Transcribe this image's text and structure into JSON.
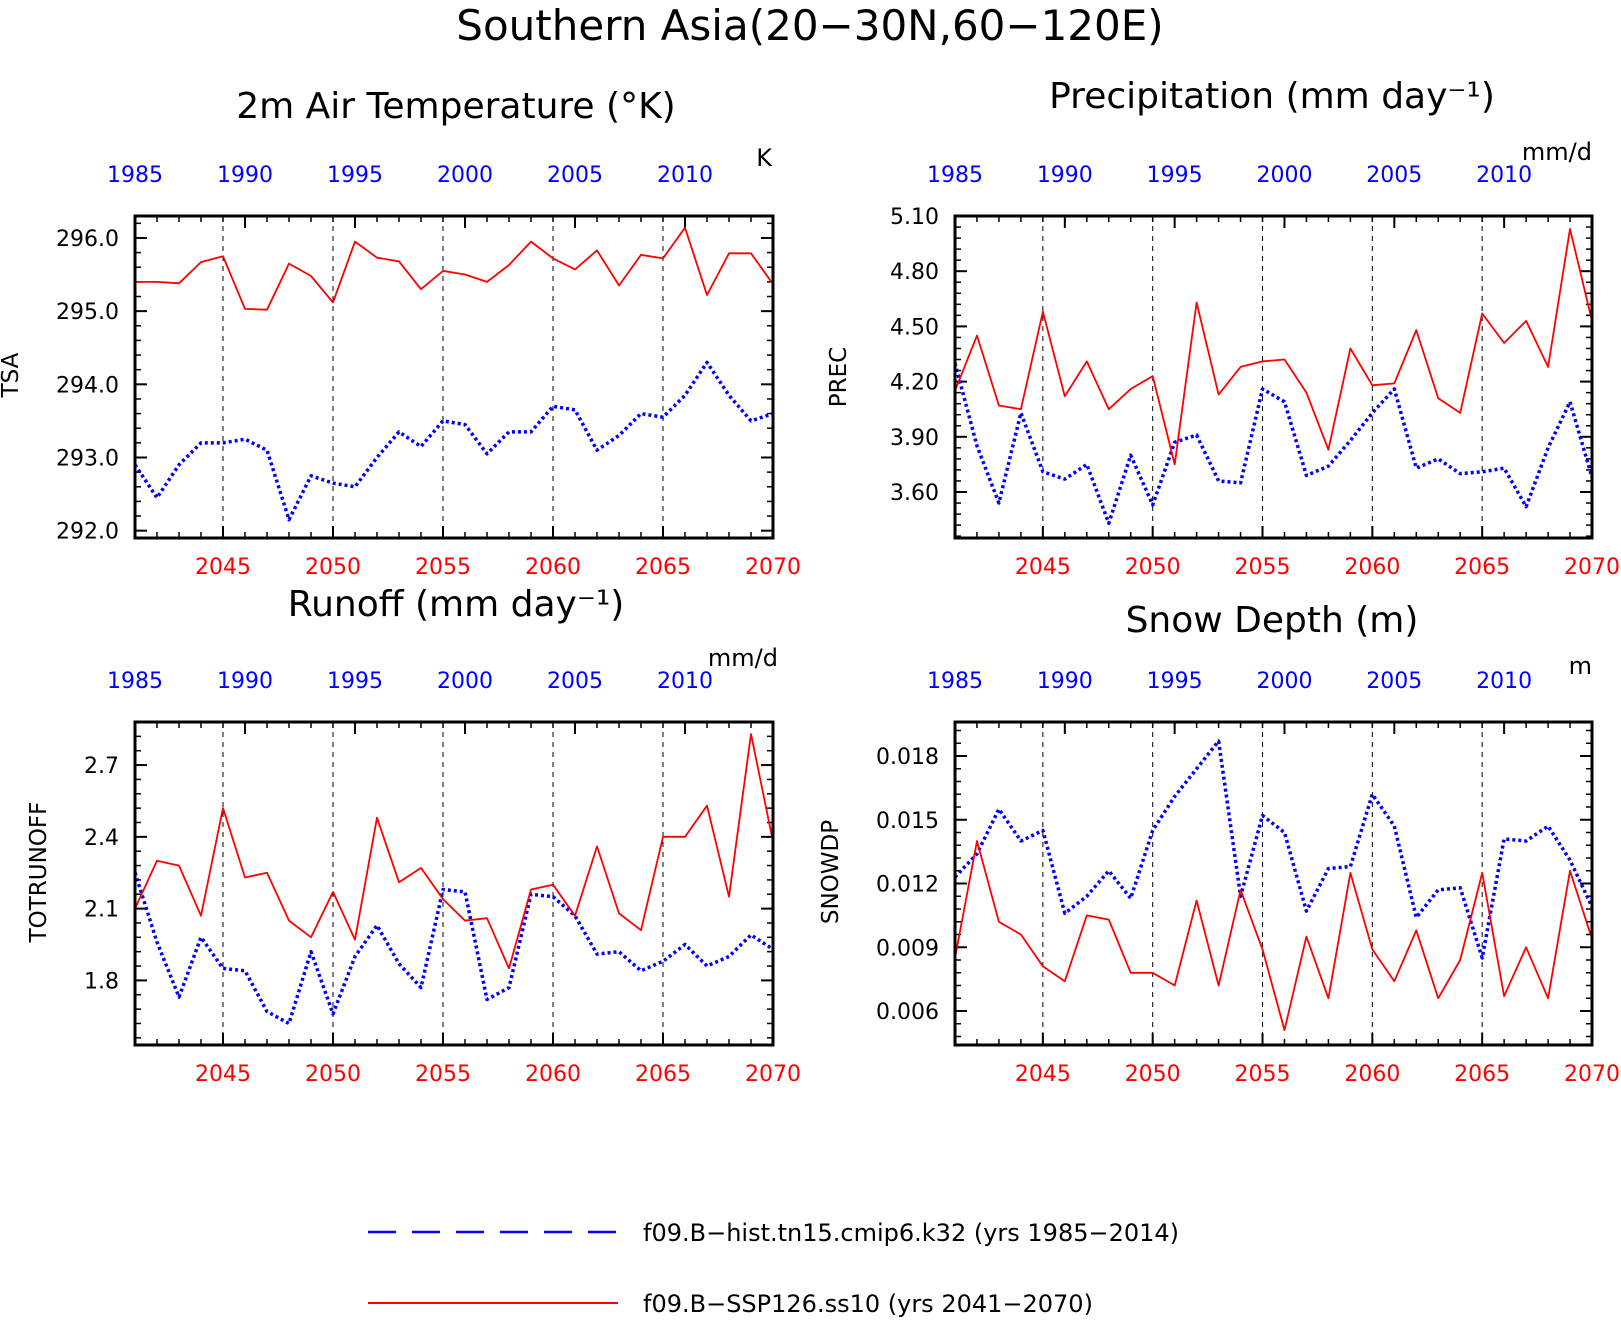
{
  "title": "Southern Asia(20−30N,60−120E)",
  "colors": {
    "hist": "#0000ff",
    "ssp": "#ff0000",
    "axis": "#000000"
  },
  "legend": {
    "hist": "f09.B−hist.tn15.cmip6.k32 (yrs 1985−2014)",
    "ssp": "f09.B−SSP126.ss10 (yrs 2041−2070)"
  },
  "chart_data": [
    {
      "type": "line",
      "panel_title": "2m Air Temperature (°K)",
      "ylabel": "TSA",
      "unit": "K",
      "ylim": [
        291.9,
        296.3
      ],
      "yticks": [
        292.0,
        293.0,
        294.0,
        295.0,
        296.0
      ],
      "ytick_labels": [
        "292.0",
        "293.0",
        "294.0",
        "295.0",
        "296.0"
      ],
      "x_top_ticks": [
        "1985",
        "1990",
        "1995",
        "2000",
        "2005",
        "2010"
      ],
      "x_bottom_ticks": [
        "2045",
        "2050",
        "2055",
        "2060",
        "2065",
        "2070"
      ],
      "vlines": [
        2045,
        2050,
        2055,
        2060,
        2065
      ],
      "series": [
        {
          "name": "f09.B−hist.tn15.cmip6.k32 (yrs 1985−2014)",
          "x_years": [
            1985,
            1986,
            1987,
            1988,
            1989,
            1990,
            1991,
            1992,
            1993,
            1994,
            1995,
            1996,
            1997,
            1998,
            1999,
            2000,
            2001,
            2002,
            2003,
            2004,
            2005,
            2006,
            2007,
            2008,
            2009,
            2010,
            2011,
            2012,
            2013,
            2014
          ],
          "values": [
            292.9,
            292.45,
            292.9,
            293.2,
            293.2,
            293.25,
            293.1,
            292.15,
            292.75,
            292.65,
            292.6,
            293.0,
            293.35,
            293.15,
            293.5,
            293.45,
            293.05,
            293.35,
            293.35,
            293.7,
            293.65,
            293.1,
            293.3,
            293.6,
            293.55,
            293.85,
            294.3,
            293.85,
            293.5,
            293.6
          ]
        },
        {
          "name": "f09.B−SSP126.ss10 (yrs 2041−2070)",
          "x_years": [
            2041,
            2042,
            2043,
            2044,
            2045,
            2046,
            2047,
            2048,
            2049,
            2050,
            2051,
            2052,
            2053,
            2054,
            2055,
            2056,
            2057,
            2058,
            2059,
            2060,
            2061,
            2062,
            2063,
            2064,
            2065,
            2066,
            2067,
            2068,
            2069,
            2070
          ],
          "values": [
            295.4,
            295.4,
            295.38,
            295.67,
            295.75,
            295.03,
            295.02,
            295.65,
            295.48,
            295.12,
            295.95,
            295.73,
            295.68,
            295.3,
            295.55,
            295.5,
            295.4,
            295.63,
            295.95,
            295.72,
            295.57,
            295.83,
            295.35,
            295.77,
            295.72,
            296.14,
            295.22,
            295.79,
            295.79,
            295.37
          ]
        }
      ]
    },
    {
      "type": "line",
      "panel_title": "Precipitation (mm day⁻¹)",
      "ylabel": "PREC",
      "unit": "mm/d",
      "ylim": [
        3.35,
        5.1
      ],
      "yticks": [
        3.6,
        3.9,
        4.2,
        4.5,
        4.8,
        5.1
      ],
      "ytick_labels": [
        "3.60",
        "3.90",
        "4.20",
        "4.50",
        "4.80",
        "5.10"
      ],
      "x_top_ticks": [
        "1985",
        "1990",
        "1995",
        "2000",
        "2005",
        "2010"
      ],
      "x_bottom_ticks": [
        "2045",
        "2050",
        "2055",
        "2060",
        "2065",
        "2070"
      ],
      "vlines": [
        2045,
        2050,
        2055,
        2060,
        2065
      ],
      "series": [
        {
          "name": "f09.B−hist.tn15.cmip6.k32 (yrs 1985−2014)",
          "x_years": [
            1985,
            1986,
            1987,
            1988,
            1989,
            1990,
            1991,
            1992,
            1993,
            1994,
            1995,
            1996,
            1997,
            1998,
            1999,
            2000,
            2001,
            2002,
            2003,
            2004,
            2005,
            2006,
            2007,
            2008,
            2009,
            2010,
            2011,
            2012,
            2013,
            2014
          ],
          "values": [
            4.3,
            3.85,
            3.54,
            4.03,
            3.71,
            3.67,
            3.75,
            3.43,
            3.8,
            3.53,
            3.87,
            3.91,
            3.66,
            3.65,
            4.16,
            4.09,
            3.69,
            3.74,
            3.88,
            4.03,
            4.16,
            3.73,
            3.78,
            3.7,
            3.71,
            3.73,
            3.52,
            3.84,
            4.09,
            3.68
          ]
        },
        {
          "name": "f09.B−SSP126.ss10 (yrs 2041−2070)",
          "x_years": [
            2041,
            2042,
            2043,
            2044,
            2045,
            2046,
            2047,
            2048,
            2049,
            2050,
            2051,
            2052,
            2053,
            2054,
            2055,
            2056,
            2057,
            2058,
            2059,
            2060,
            2061,
            2062,
            2063,
            2064,
            2065,
            2066,
            2067,
            2068,
            2069,
            2070
          ],
          "values": [
            4.15,
            4.45,
            4.07,
            4.05,
            4.58,
            4.12,
            4.31,
            4.05,
            4.16,
            4.23,
            3.75,
            4.63,
            4.13,
            4.28,
            4.31,
            4.32,
            4.14,
            3.83,
            4.38,
            4.18,
            4.19,
            4.48,
            4.11,
            4.03,
            4.57,
            4.41,
            4.53,
            4.28,
            5.03,
            4.53
          ]
        }
      ]
    },
    {
      "type": "line",
      "panel_title": "Runoff (mm day⁻¹)",
      "ylabel": "TOTRUNOFF",
      "unit": "mm/d",
      "ylim": [
        1.53,
        2.88
      ],
      "yticks": [
        1.8,
        2.1,
        2.4,
        2.7
      ],
      "ytick_labels": [
        "1.8",
        "2.1",
        "2.4",
        "2.7"
      ],
      "x_top_ticks": [
        "1985",
        "1990",
        "1995",
        "2000",
        "2005",
        "2010"
      ],
      "x_bottom_ticks": [
        "2045",
        "2050",
        "2055",
        "2060",
        "2065",
        "2070"
      ],
      "vlines": [
        2045,
        2050,
        2055,
        2060,
        2065
      ],
      "series": [
        {
          "name": "f09.B−hist.tn15.cmip6.k32 (yrs 1985−2014)",
          "x_years": [
            1985,
            1986,
            1987,
            1988,
            1989,
            1990,
            1991,
            1992,
            1993,
            1994,
            1995,
            1996,
            1997,
            1998,
            1999,
            2000,
            2001,
            2002,
            2003,
            2004,
            2005,
            2006,
            2007,
            2008,
            2009,
            2010,
            2011,
            2012,
            2013,
            2014
          ],
          "values": [
            2.25,
            1.96,
            1.73,
            1.98,
            1.85,
            1.84,
            1.67,
            1.62,
            1.92,
            1.66,
            1.9,
            2.03,
            1.87,
            1.77,
            2.18,
            2.17,
            1.72,
            1.77,
            2.16,
            2.15,
            2.07,
            1.91,
            1.92,
            1.84,
            1.88,
            1.95,
            1.86,
            1.9,
            1.99,
            1.93
          ]
        },
        {
          "name": "f09.B−SSP126.ss10 (yrs 2041−2070)",
          "x_years": [
            2041,
            2042,
            2043,
            2044,
            2045,
            2046,
            2047,
            2048,
            2049,
            2050,
            2051,
            2052,
            2053,
            2054,
            2055,
            2056,
            2057,
            2058,
            2059,
            2060,
            2061,
            2062,
            2063,
            2064,
            2065,
            2066,
            2067,
            2068,
            2069,
            2070
          ],
          "values": [
            2.1,
            2.3,
            2.28,
            2.07,
            2.52,
            2.23,
            2.25,
            2.05,
            1.98,
            2.17,
            1.97,
            2.48,
            2.21,
            2.27,
            2.14,
            2.05,
            2.06,
            1.85,
            2.18,
            2.2,
            2.07,
            2.36,
            2.08,
            2.01,
            2.4,
            2.4,
            2.53,
            2.15,
            2.83,
            2.38
          ]
        }
      ]
    },
    {
      "type": "line",
      "panel_title": "Snow Depth (m)",
      "ylabel": "SNOWDP",
      "unit": "m",
      "ylim": [
        0.0044,
        0.0196
      ],
      "yticks": [
        0.006,
        0.009,
        0.012,
        0.015,
        0.018
      ],
      "ytick_labels": [
        "0.006",
        "0.009",
        "0.012",
        "0.015",
        "0.018"
      ],
      "x_top_ticks": [
        "1985",
        "1990",
        "1995",
        "2000",
        "2005",
        "2010"
      ],
      "x_bottom_ticks": [
        "2045",
        "2050",
        "2055",
        "2060",
        "2065",
        "2070"
      ],
      "vlines": [
        2045,
        2050,
        2055,
        2060,
        2065
      ],
      "series": [
        {
          "name": "f09.B−hist.tn15.cmip6.k32 (yrs 1985−2014)",
          "x_years": [
            1985,
            1986,
            1987,
            1988,
            1989,
            1990,
            1991,
            1992,
            1993,
            1994,
            1995,
            1996,
            1997,
            1998,
            1999,
            2000,
            2001,
            2002,
            2003,
            2004,
            2005,
            2006,
            2007,
            2008,
            2009,
            2010,
            2011,
            2012,
            2013,
            2014
          ],
          "values": [
            0.0123,
            0.0134,
            0.0155,
            0.014,
            0.0145,
            0.0106,
            0.0114,
            0.0126,
            0.0113,
            0.0145,
            0.0161,
            0.0174,
            0.0187,
            0.0114,
            0.0152,
            0.0144,
            0.0107,
            0.0127,
            0.0128,
            0.0162,
            0.0147,
            0.0104,
            0.0117,
            0.0118,
            0.0085,
            0.0141,
            0.014,
            0.0147,
            0.0131,
            0.0109
          ]
        },
        {
          "name": "f09.B−SSP126.ss10 (yrs 2041−2070)",
          "x_years": [
            2041,
            2042,
            2043,
            2044,
            2045,
            2046,
            2047,
            2048,
            2049,
            2050,
            2051,
            2052,
            2053,
            2054,
            2055,
            2056,
            2057,
            2058,
            2059,
            2060,
            2061,
            2062,
            2063,
            2064,
            2065,
            2066,
            2067,
            2068,
            2069,
            2070
          ],
          "values": [
            0.0085,
            0.014,
            0.0102,
            0.0096,
            0.0081,
            0.0074,
            0.0105,
            0.0103,
            0.0078,
            0.0078,
            0.0072,
            0.0112,
            0.0072,
            0.0117,
            0.0089,
            0.0051,
            0.0095,
            0.0066,
            0.0125,
            0.0089,
            0.0074,
            0.0098,
            0.0066,
            0.0084,
            0.0125,
            0.0067,
            0.009,
            0.0066,
            0.0126,
            0.0094
          ]
        }
      ]
    }
  ]
}
